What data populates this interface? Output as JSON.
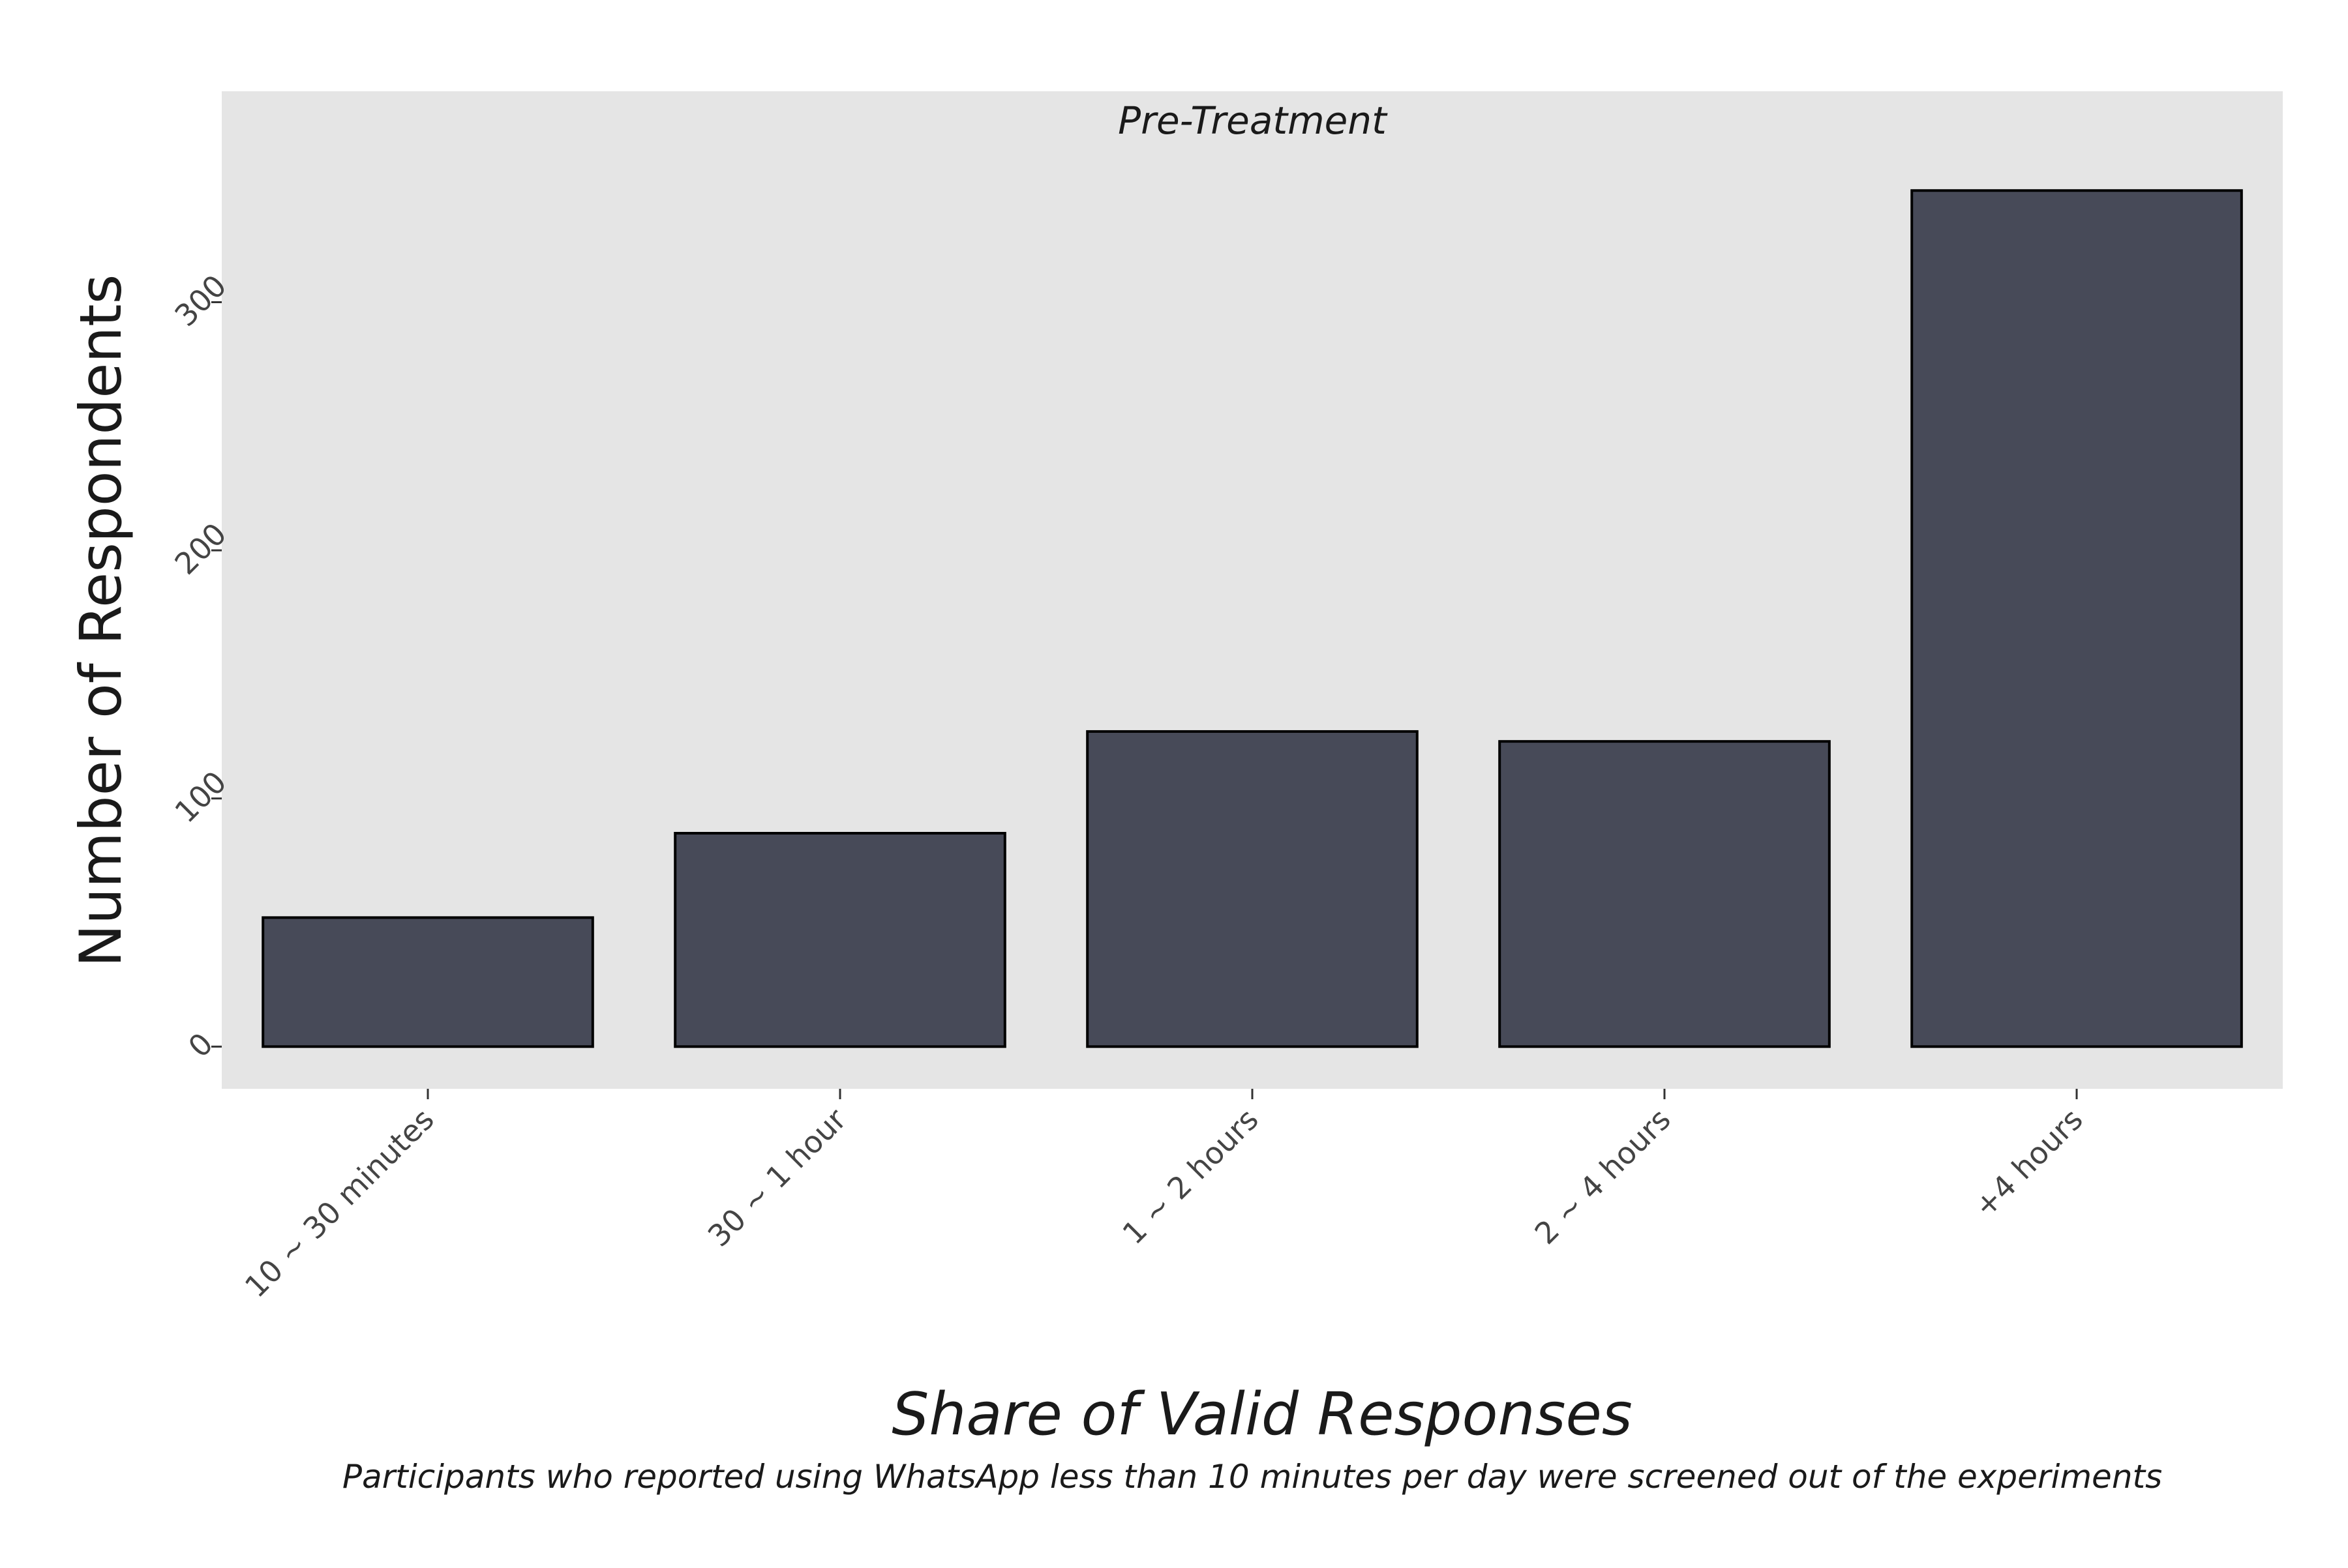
{
  "chart_data": {
    "type": "bar",
    "panel_title": "Pre-Treatment",
    "categories": [
      "10 ~ 30 minutes",
      "30 ~ 1 hour",
      "1 ~ 2 hours",
      "2 ~ 4 hours",
      "+4 hours"
    ],
    "values": [
      52,
      86,
      127,
      123,
      345
    ],
    "xlabel": "Share of Valid Responses",
    "ylabel": "Number of Respondents",
    "caption": "Participants who reported using WhatsApp less than 10 minutes per day were screened out of the experiments",
    "ylim": [
      -17,
      385
    ],
    "yticks": [
      0,
      100,
      200,
      300
    ],
    "grid": false,
    "legend": "none"
  },
  "colors": {
    "bar_fill": "#474a58",
    "bar_stroke": "#000000",
    "panel_background": "#e5e5e5",
    "tick_mark": "#333333",
    "tick_text": "#444444",
    "title_text": "#1a1a1a"
  }
}
